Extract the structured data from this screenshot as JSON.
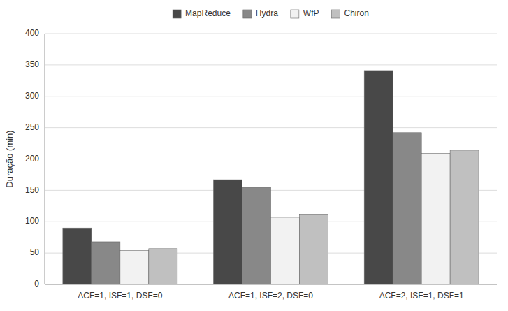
{
  "chart_data": {
    "type": "bar",
    "categories": [
      "ACF=1, ISF=1, DSF=0",
      "ACF=1, ISF=2, DSF=0",
      "ACF=2, ISF=1, DSF=1"
    ],
    "series": [
      {
        "name": "MapReduce",
        "color": "#484848",
        "values": [
          90,
          167,
          341
        ]
      },
      {
        "name": "Hydra",
        "color": "#888888",
        "values": [
          68,
          155,
          242
        ]
      },
      {
        "name": "WfP",
        "color": "#f2f2f2",
        "values": [
          54,
          107,
          209
        ]
      },
      {
        "name": "Chiron",
        "color": "#c0c0c0",
        "values": [
          57,
          112,
          214
        ]
      }
    ],
    "ylabel": "Duração (min)",
    "ylim": [
      0,
      400
    ],
    "yticks": [
      0,
      50,
      100,
      150,
      200,
      250,
      300,
      350,
      400
    ],
    "grid": true,
    "legend": "top"
  }
}
